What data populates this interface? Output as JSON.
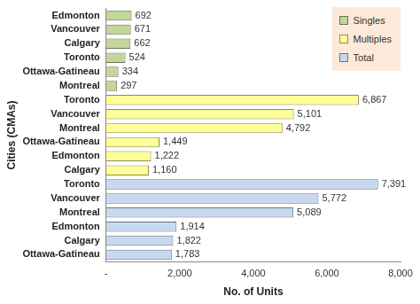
{
  "chart_data": {
    "type": "bar",
    "orientation": "horizontal",
    "x_label": "No. of Units",
    "y_label": "Cities (CMAs)",
    "categories": [
      "Edmonton",
      "Vancouver",
      "Calgary",
      "Toronto",
      "Ottawa-Gatineau",
      "Montreal",
      "Toronto",
      "Vancouver",
      "Montreal",
      "Ottawa-Gatineau",
      "Edmonton",
      "Calgary",
      "Toronto",
      "Vancouver",
      "Montreal",
      "Edmonton",
      "Calgary",
      "Ottawa-Gatineau"
    ],
    "series": [
      {
        "name": "Singles",
        "color": "#c3d69b",
        "values": [
          692,
          671,
          662,
          524,
          334,
          297,
          null,
          null,
          null,
          null,
          null,
          null,
          null,
          null,
          null,
          null,
          null,
          null
        ]
      },
      {
        "name": "Multiples",
        "color": "#ffff99",
        "values": [
          null,
          null,
          null,
          null,
          null,
          null,
          6867,
          5101,
          4792,
          1449,
          1222,
          1160,
          null,
          null,
          null,
          null,
          null,
          null
        ],
        "value_labels": [
          null,
          null,
          null,
          null,
          null,
          null,
          "6,867",
          "5,101",
          "4,792",
          "1,449",
          "1,222",
          "1,160",
          null,
          null,
          null,
          null,
          null,
          null
        ]
      },
      {
        "name": "Total",
        "color": "#c6d9f1",
        "values": [
          null,
          null,
          null,
          null,
          null,
          null,
          null,
          null,
          null,
          null,
          null,
          null,
          7391,
          5772,
          5089,
          1914,
          1822,
          1783
        ],
        "value_labels": [
          null,
          null,
          null,
          null,
          null,
          null,
          null,
          null,
          null,
          null,
          null,
          null,
          "7,391",
          "5,772",
          "5,089",
          "1,914",
          "1,822",
          "1,783"
        ]
      }
    ],
    "xlim": [
      0,
      8000
    ],
    "xticks": [
      {
        "value": 0,
        "label": "-"
      },
      {
        "value": 2000,
        "label": "2,000"
      },
      {
        "value": 4000,
        "label": "4,000"
      },
      {
        "value": 6000,
        "label": "6,000"
      },
      {
        "value": 8000,
        "label": "8,000"
      }
    ],
    "grid": false,
    "legend": "upper right",
    "data_labels": true
  }
}
